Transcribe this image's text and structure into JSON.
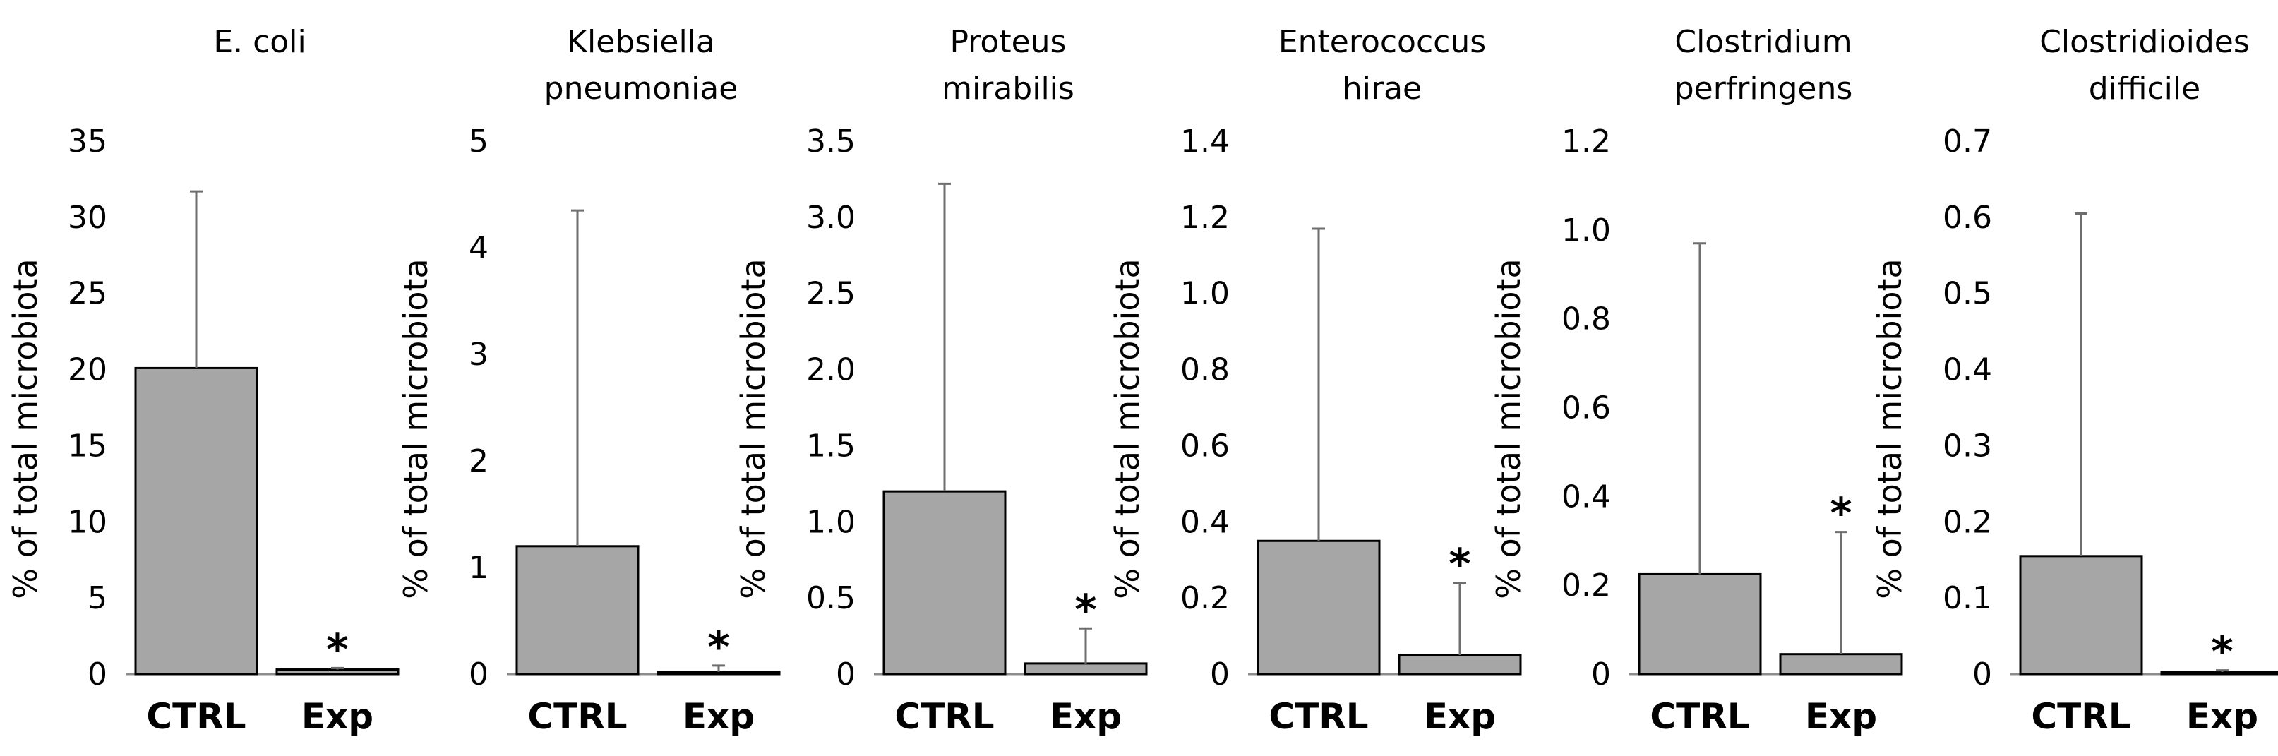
{
  "colors": {
    "bar_fill": "#a6a6a6",
    "bar_stroke": "#000000",
    "axis": "#8c8c8c",
    "error_bar": "#6e6e6e",
    "text": "#000000"
  },
  "chart_data": [
    {
      "type": "bar",
      "title": [
        "E. coli"
      ],
      "categories": [
        "CTRL",
        "Exp"
      ],
      "values": [
        20.1,
        0.3
      ],
      "error_upper": [
        31.7,
        0.4
      ],
      "significance": [
        "",
        "*"
      ],
      "ylabel": "% of total microbiota",
      "ylim": [
        0,
        35
      ],
      "yticks": [
        "0",
        "5",
        "10",
        "15",
        "20",
        "25",
        "30",
        "35"
      ]
    },
    {
      "type": "bar",
      "title": [
        "Klebsiella",
        "pneumoniae"
      ],
      "categories": [
        "CTRL",
        "Exp"
      ],
      "values": [
        1.2,
        0.02
      ],
      "error_upper": [
        4.35,
        0.08
      ],
      "significance": [
        "",
        "*"
      ],
      "ylabel": "% of total microbiota",
      "ylim": [
        0,
        5
      ],
      "yticks": [
        "0",
        "1",
        "2",
        "3",
        "4",
        "5"
      ]
    },
    {
      "type": "bar",
      "title": [
        "Proteus",
        "mirabilis"
      ],
      "categories": [
        "CTRL",
        "Exp"
      ],
      "values": [
        1.2,
        0.07
      ],
      "error_upper": [
        3.22,
        0.3
      ],
      "significance": [
        "",
        "*"
      ],
      "ylabel": "% of total microbiota",
      "ylim": [
        0,
        3.5
      ],
      "yticks": [
        "0",
        "0.5",
        "1.0",
        "1.5",
        "2.0",
        "2.5",
        "3.0",
        "3.5"
      ]
    },
    {
      "type": "bar",
      "title": [
        "Enterococcus",
        "hirae"
      ],
      "categories": [
        "CTRL",
        "Exp"
      ],
      "values": [
        0.35,
        0.05
      ],
      "error_upper": [
        1.17,
        0.24
      ],
      "significance": [
        "",
        "*"
      ],
      "ylabel": "% of total microbiota",
      "ylim": [
        0,
        1.4
      ],
      "yticks": [
        "0",
        "0.2",
        "0.4",
        "0.6",
        "0.8",
        "1.0",
        "1.2",
        "1.4"
      ]
    },
    {
      "type": "bar",
      "title": [
        "Clostridium",
        "perfringens"
      ],
      "categories": [
        "CTRL",
        "Exp"
      ],
      "values": [
        0.225,
        0.045
      ],
      "error_upper": [
        0.97,
        0.32
      ],
      "significance": [
        "",
        "*"
      ],
      "ylabel": "% of total microbiota",
      "ylim": [
        0,
        1.2
      ],
      "yticks": [
        "0",
        "0.2",
        "0.4",
        "0.6",
        "0.8",
        "1.0",
        "1.2"
      ]
    },
    {
      "type": "bar",
      "title": [
        "Clostridioides",
        "difficile"
      ],
      "categories": [
        "CTRL",
        "Exp"
      ],
      "values": [
        0.155,
        0.002
      ],
      "error_upper": [
        0.605,
        0.005
      ],
      "significance": [
        "",
        "*"
      ],
      "ylabel": "% of total microbiota",
      "ylim": [
        0,
        0.7
      ],
      "yticks": [
        "0",
        "0.1",
        "0.2",
        "0.3",
        "0.4",
        "0.5",
        "0.6",
        "0.7"
      ]
    }
  ]
}
